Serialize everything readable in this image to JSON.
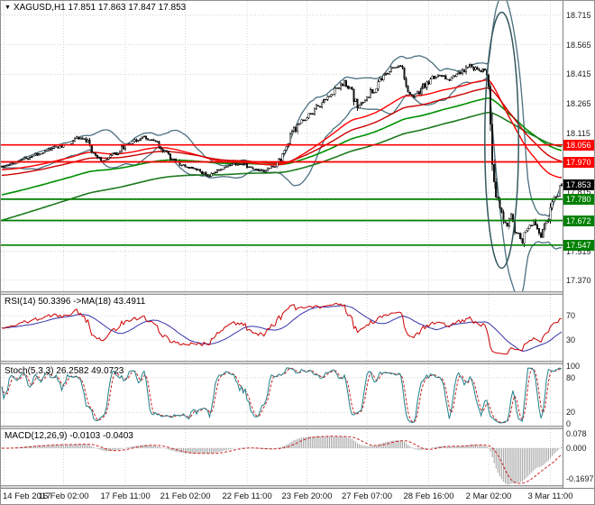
{
  "header": {
    "dropdown_icon": "▼"
  },
  "chart_data": [
    {
      "type": "candlestick",
      "panel": "main",
      "symbol": "XAGUSD",
      "timeframe": "H1",
      "title": "XAGUSD,H1 17.851 17.863 17.847 17.853",
      "ohlc_display": {
        "open": "17.851",
        "high": "17.863",
        "low": "17.847",
        "close": "17.853"
      },
      "bars_total": 300,
      "ylim": [
        17.34,
        18.76
      ],
      "y_ticks": [
        "18.715",
        "18.565",
        "18.415",
        "18.265",
        "18.115",
        "17.965",
        "17.815",
        "17.665",
        "17.515",
        "17.370"
      ],
      "x_ticks": [
        {
          "bar": 1,
          "text": "14 Feb 2017"
        },
        {
          "bar": 33,
          "text": "16 Feb 02:00"
        },
        {
          "bar": 66,
          "text": "17 Feb 11:00"
        },
        {
          "bar": 98,
          "text": "21 Feb 02:00"
        },
        {
          "bar": 131,
          "text": "22 Feb 11:00"
        },
        {
          "bar": 163,
          "text": "23 Feb 20:00"
        },
        {
          "bar": 195,
          "text": "27 Feb 07:00"
        },
        {
          "bar": 228,
          "text": "28 Feb 16:00"
        },
        {
          "bar": 260,
          "text": "2 Mar 02:00"
        },
        {
          "bar": 293,
          "text": "3 Mar 11:00"
        }
      ],
      "price_path_anchors": [
        [
          0,
          17.945
        ],
        [
          6,
          17.965
        ],
        [
          12,
          17.985
        ],
        [
          18,
          18.005
        ],
        [
          24,
          18.03
        ],
        [
          30,
          18.045
        ],
        [
          36,
          18.06
        ],
        [
          41,
          18.095
        ],
        [
          45,
          18.075
        ],
        [
          50,
          18.0
        ],
        [
          55,
          17.975
        ],
        [
          60,
          18.01
        ],
        [
          66,
          18.05
        ],
        [
          71,
          18.08
        ],
        [
          76,
          18.095
        ],
        [
          81,
          18.075
        ],
        [
          86,
          18.03
        ],
        [
          92,
          17.975
        ],
        [
          98,
          17.945
        ],
        [
          104,
          17.93
        ],
        [
          110,
          17.9
        ],
        [
          116,
          17.925
        ],
        [
          122,
          17.955
        ],
        [
          128,
          17.96
        ],
        [
          134,
          17.935
        ],
        [
          140,
          17.925
        ],
        [
          146,
          17.955
        ],
        [
          149,
          17.985
        ],
        [
          152,
          18.06
        ],
        [
          156,
          18.13
        ],
        [
          160,
          18.17
        ],
        [
          164,
          18.205
        ],
        [
          169,
          18.25
        ],
        [
          174,
          18.3
        ],
        [
          179,
          18.34
        ],
        [
          183,
          18.375
        ],
        [
          186,
          18.33
        ],
        [
          190,
          18.255
        ],
        [
          194,
          18.28
        ],
        [
          198,
          18.33
        ],
        [
          202,
          18.38
        ],
        [
          206,
          18.425
        ],
        [
          210,
          18.455
        ],
        [
          213,
          18.46
        ],
        [
          216,
          18.36
        ],
        [
          219,
          18.3
        ],
        [
          222,
          18.32
        ],
        [
          226,
          18.36
        ],
        [
          230,
          18.395
        ],
        [
          234,
          18.415
        ],
        [
          238,
          18.39
        ],
        [
          242,
          18.405
        ],
        [
          246,
          18.43
        ],
        [
          250,
          18.455
        ],
        [
          253,
          18.44
        ],
        [
          256,
          18.43
        ],
        [
          258,
          18.44
        ],
        [
          260,
          18.33
        ],
        [
          261,
          18.15
        ],
        [
          262,
          17.98
        ],
        [
          263,
          17.87
        ],
        [
          264,
          17.8
        ],
        [
          266,
          17.74
        ],
        [
          268,
          17.69
        ],
        [
          270,
          17.66
        ],
        [
          272,
          17.7
        ],
        [
          274,
          17.64
        ],
        [
          276,
          17.59
        ],
        [
          278,
          17.565
        ],
        [
          280,
          17.61
        ],
        [
          282,
          17.65
        ],
        [
          284,
          17.665
        ],
        [
          286,
          17.625
        ],
        [
          288,
          17.6
        ],
        [
          290,
          17.64
        ],
        [
          292,
          17.69
        ],
        [
          294,
          17.74
        ],
        [
          296,
          17.79
        ],
        [
          297,
          17.82
        ],
        [
          298,
          17.84
        ],
        [
          299,
          17.853
        ]
      ],
      "levels": [
        {
          "price": 18.056,
          "label": "18.056",
          "color": "#ff0000",
          "kind": "resistance",
          "line": true
        },
        {
          "price": 17.97,
          "label": "17.970",
          "color": "#ff0000",
          "kind": "resistance",
          "line": true
        },
        {
          "price": 17.853,
          "label": "17.853",
          "color": "#000000",
          "kind": "current-price",
          "line": false
        },
        {
          "price": 17.78,
          "label": "17.780",
          "color": "#008000",
          "kind": "support",
          "line": true
        },
        {
          "price": 17.672,
          "label": "17.672",
          "color": "#008000",
          "kind": "support",
          "line": true
        },
        {
          "price": 17.547,
          "label": "17.547",
          "color": "#008000",
          "kind": "support",
          "line": true
        }
      ],
      "overlays": {
        "bollinger": {
          "period": 20,
          "deviation": 2,
          "color": "#4a7080"
        },
        "ma_fast": [
          {
            "period": 60,
            "init": 17.93,
            "color": "#ff0000"
          },
          {
            "period": 90,
            "init": 17.9,
            "color": "#cc0000"
          }
        ],
        "ma_slow": [
          {
            "period": 130,
            "init": 17.8,
            "color": "#009000"
          },
          {
            "period": 190,
            "init": 17.67,
            "color": "#1e7a1e"
          }
        ]
      },
      "annotation_ellipse": {
        "bar_from": 258,
        "bar_to": 276,
        "price_from": 17.43,
        "price_to": 18.73,
        "color": "#33585e"
      },
      "colors": {
        "candle": "#151515",
        "bull_body": "#ffffff",
        "bear_body": "#151515"
      }
    },
    {
      "type": "line",
      "panel": "rsi",
      "label": "RSI(14) 50.3396 ->MA(18) 43.4911",
      "period": 14,
      "ma_period": 18,
      "current": 50.3396,
      "ma_current": 43.4911,
      "ylim": [
        0,
        100
      ],
      "y_ticks": [
        "70",
        "30"
      ],
      "colors": {
        "rsi": "#cc0000",
        "ma": "#3333aa"
      }
    },
    {
      "type": "line",
      "panel": "stoch",
      "label": "Stoch(5,3,3) 26.2582 49.0723",
      "k": 5,
      "slowing": 3,
      "d": 3,
      "current_k": 26.2582,
      "current_d": 49.0723,
      "ylim": [
        0,
        100
      ],
      "y_ticks": [
        "100",
        "80",
        "20",
        "0"
      ],
      "colors": {
        "k": "#20808a",
        "d": "#cc2222"
      }
    },
    {
      "type": "histogram+line",
      "panel": "macd",
      "label": "MACD(12,26,9) -0.0103 -0.0403",
      "fast": 12,
      "slow": 26,
      "signal": 9,
      "current_macd": -0.0103,
      "current_signal": -0.0403,
      "ylim": [
        -0.19,
        0.09
      ],
      "y_ticks": [
        "0.078",
        "0.000",
        "-0.1697"
      ],
      "colors": {
        "hist": "#a6a6a6",
        "signal": "#cc2222"
      }
    }
  ]
}
